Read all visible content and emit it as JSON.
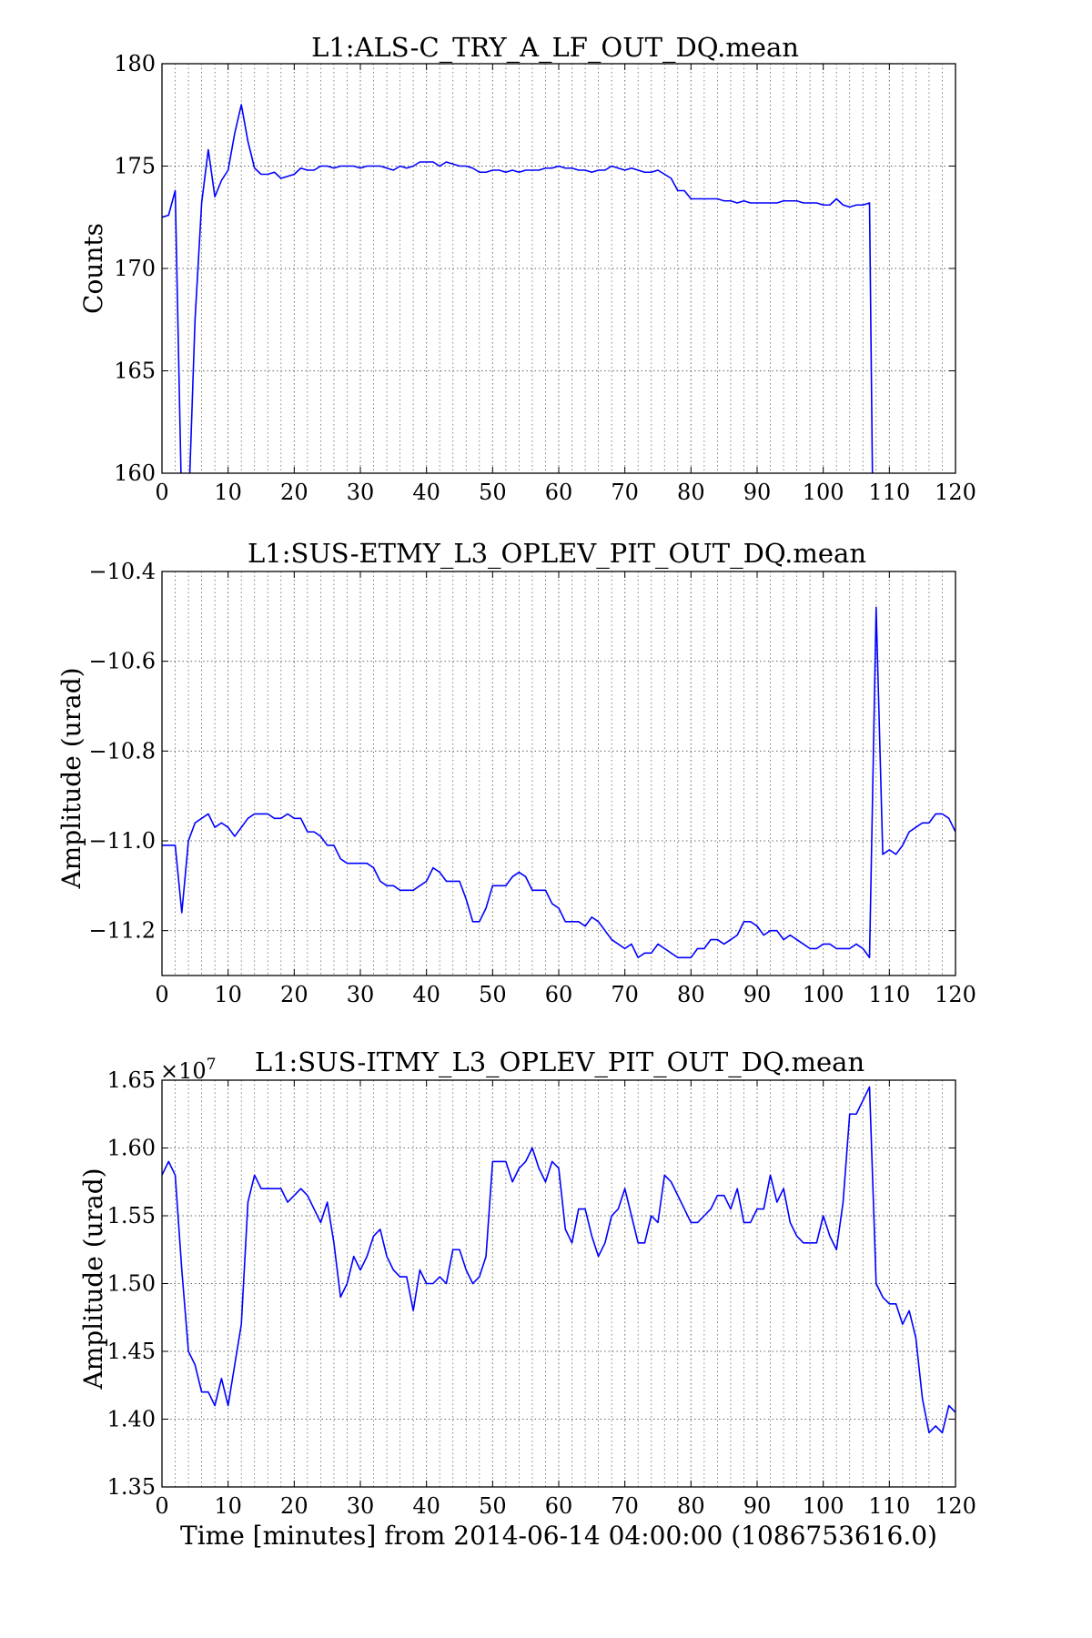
{
  "figure": {
    "xlabel": "Time [minutes] from 2014-06-14 04:00:00 (1086753616.0)",
    "line_color": "#0000ff",
    "grid_color": "#666666"
  },
  "chart_data": [
    {
      "type": "line",
      "title": "L1:ALS-C_TRY_A_LF_OUT_DQ.mean",
      "ylabel": "Counts",
      "xlabel": "",
      "xlim": [
        0,
        120
      ],
      "ylim": [
        160,
        180
      ],
      "xticks": [
        0,
        10,
        20,
        30,
        40,
        50,
        60,
        70,
        80,
        90,
        100,
        110,
        120
      ],
      "yticks": [
        160,
        165,
        170,
        175,
        180
      ],
      "ytick_labels": [
        "160",
        "165",
        "170",
        "175",
        "180"
      ],
      "offset_label": "",
      "grid": true,
      "series": [
        {
          "x": [
            0,
            1,
            2,
            3,
            4,
            5,
            6,
            7,
            8,
            9,
            10,
            11,
            12,
            13,
            14,
            15,
            16,
            17,
            18,
            19,
            20,
            21,
            22,
            23,
            24,
            25,
            26,
            27,
            28,
            29,
            30,
            31,
            32,
            33,
            34,
            35,
            36,
            37,
            38,
            39,
            40,
            41,
            42,
            43,
            44,
            45,
            46,
            47,
            48,
            49,
            50,
            51,
            52,
            53,
            54,
            55,
            56,
            57,
            58,
            59,
            60,
            61,
            62,
            63,
            64,
            65,
            66,
            67,
            68,
            69,
            70,
            71,
            72,
            73,
            74,
            75,
            76,
            77,
            78,
            79,
            80,
            81,
            82,
            83,
            84,
            85,
            86,
            87,
            88,
            89,
            90,
            91,
            92,
            93,
            94,
            95,
            96,
            97,
            98,
            99,
            100,
            101,
            102,
            103,
            104,
            105,
            106,
            107,
            107.5
          ],
          "y": [
            172.5,
            172.6,
            173.8,
            158,
            158,
            167.5,
            173.2,
            175.8,
            173.5,
            174.3,
            174.8,
            176.6,
            178.0,
            176.2,
            174.9,
            174.6,
            174.6,
            174.7,
            174.4,
            174.5,
            174.6,
            174.9,
            174.8,
            174.8,
            175.0,
            175.0,
            174.9,
            175.0,
            175.0,
            175.0,
            174.9,
            175.0,
            175.0,
            175.0,
            174.9,
            174.8,
            175.0,
            174.9,
            175.0,
            175.2,
            175.2,
            175.2,
            175.0,
            175.2,
            175.1,
            175.0,
            175.0,
            174.9,
            174.7,
            174.7,
            174.8,
            174.8,
            174.7,
            174.8,
            174.7,
            174.8,
            174.8,
            174.8,
            174.9,
            174.9,
            175.0,
            174.9,
            174.9,
            174.8,
            174.8,
            174.7,
            174.8,
            174.8,
            175.0,
            174.9,
            174.8,
            174.9,
            174.8,
            174.7,
            174.7,
            174.8,
            174.6,
            174.4,
            173.8,
            173.8,
            173.4,
            173.4,
            173.4,
            173.4,
            173.4,
            173.3,
            173.3,
            173.2,
            173.3,
            173.2,
            173.2,
            173.2,
            173.2,
            173.2,
            173.3,
            173.3,
            173.3,
            173.2,
            173.2,
            173.2,
            173.1,
            173.1,
            173.4,
            173.1,
            173.0,
            173.1,
            173.1,
            173.2,
            158
          ]
        }
      ]
    },
    {
      "type": "line",
      "title": "L1:SUS-ETMY_L3_OPLEV_PIT_OUT_DQ.mean",
      "ylabel": "Amplitude (urad)",
      "xlabel": "",
      "xlim": [
        0,
        120
      ],
      "ylim": [
        -11.3,
        -10.4
      ],
      "xticks": [
        0,
        10,
        20,
        30,
        40,
        50,
        60,
        70,
        80,
        90,
        100,
        110,
        120
      ],
      "yticks": [
        -11.2,
        -11.0,
        -10.8,
        -10.6,
        -10.4
      ],
      "ytick_labels": [
        "−11.2",
        "−11.0",
        "−10.8",
        "−10.6",
        "−10.4"
      ],
      "offset_label": "",
      "grid": true,
      "series": [
        {
          "x": [
            0,
            1,
            2,
            3,
            4,
            5,
            6,
            7,
            8,
            9,
            10,
            11,
            12,
            13,
            14,
            15,
            16,
            17,
            18,
            19,
            20,
            21,
            22,
            23,
            24,
            25,
            26,
            27,
            28,
            29,
            30,
            31,
            32,
            33,
            34,
            35,
            36,
            37,
            38,
            39,
            40,
            41,
            42,
            43,
            44,
            45,
            46,
            47,
            48,
            49,
            50,
            51,
            52,
            53,
            54,
            55,
            56,
            57,
            58,
            59,
            60,
            61,
            62,
            63,
            64,
            65,
            66,
            67,
            68,
            69,
            70,
            71,
            72,
            73,
            74,
            75,
            76,
            77,
            78,
            79,
            80,
            81,
            82,
            83,
            84,
            85,
            86,
            87,
            88,
            89,
            90,
            91,
            92,
            93,
            94,
            95,
            96,
            97,
            98,
            99,
            100,
            101,
            102,
            103,
            104,
            105,
            106,
            107,
            108,
            109,
            110,
            111,
            112,
            113,
            114,
            115,
            116,
            117,
            118,
            119,
            120
          ],
          "y": [
            -11.01,
            -11.01,
            -11.01,
            -11.16,
            -11.0,
            -10.96,
            -10.95,
            -10.94,
            -10.97,
            -10.96,
            -10.97,
            -10.99,
            -10.97,
            -10.95,
            -10.94,
            -10.94,
            -10.94,
            -10.95,
            -10.95,
            -10.94,
            -10.95,
            -10.95,
            -10.98,
            -10.98,
            -10.99,
            -11.01,
            -11.01,
            -11.04,
            -11.05,
            -11.05,
            -11.05,
            -11.05,
            -11.06,
            -11.09,
            -11.1,
            -11.1,
            -11.11,
            -11.11,
            -11.11,
            -11.1,
            -11.09,
            -11.06,
            -11.07,
            -11.09,
            -11.09,
            -11.09,
            -11.13,
            -11.18,
            -11.18,
            -11.15,
            -11.1,
            -11.1,
            -11.1,
            -11.08,
            -11.07,
            -11.08,
            -11.11,
            -11.11,
            -11.11,
            -11.14,
            -11.15,
            -11.18,
            -11.18,
            -11.18,
            -11.19,
            -11.17,
            -11.18,
            -11.2,
            -11.22,
            -11.23,
            -11.24,
            -11.23,
            -11.26,
            -11.25,
            -11.25,
            -11.23,
            -11.24,
            -11.25,
            -11.26,
            -11.26,
            -11.26,
            -11.24,
            -11.24,
            -11.22,
            -11.22,
            -11.23,
            -11.22,
            -11.21,
            -11.18,
            -11.18,
            -11.19,
            -11.21,
            -11.2,
            -11.2,
            -11.22,
            -11.21,
            -11.22,
            -11.23,
            -11.24,
            -11.24,
            -11.23,
            -11.23,
            -11.24,
            -11.24,
            -11.24,
            -11.23,
            -11.24,
            -11.26,
            -10.48,
            -11.03,
            -11.02,
            -11.03,
            -11.01,
            -10.98,
            -10.97,
            -10.96,
            -10.96,
            -10.94,
            -10.94,
            -10.95,
            -10.98
          ]
        }
      ]
    },
    {
      "type": "line",
      "title": "L1:SUS-ITMY_L3_OPLEV_PIT_OUT_DQ.mean",
      "ylabel": "Amplitude (urad)",
      "xlabel": "Time [minutes] from 2014-06-14 04:00:00 (1086753616.0)",
      "xlim": [
        0,
        120
      ],
      "ylim": [
        1.35,
        1.65
      ],
      "xticks": [
        0,
        10,
        20,
        30,
        40,
        50,
        60,
        70,
        80,
        90,
        100,
        110,
        120
      ],
      "yticks": [
        1.35,
        1.4,
        1.45,
        1.5,
        1.55,
        1.6,
        1.65
      ],
      "ytick_labels": [
        "1.35",
        "1.40",
        "1.45",
        "1.50",
        "1.55",
        "1.60",
        "1.65"
      ],
      "offset_label": "×10",
      "offset_exponent": "7",
      "grid": true,
      "series": [
        {
          "x": [
            0,
            1,
            2,
            3,
            4,
            5,
            6,
            7,
            8,
            9,
            10,
            11,
            12,
            13,
            14,
            15,
            16,
            17,
            18,
            19,
            20,
            21,
            22,
            23,
            24,
            25,
            26,
            27,
            28,
            29,
            30,
            31,
            32,
            33,
            34,
            35,
            36,
            37,
            38,
            39,
            40,
            41,
            42,
            43,
            44,
            45,
            46,
            47,
            48,
            49,
            50,
            51,
            52,
            53,
            54,
            55,
            56,
            57,
            58,
            59,
            60,
            61,
            62,
            63,
            64,
            65,
            66,
            67,
            68,
            69,
            70,
            71,
            72,
            73,
            74,
            75,
            76,
            77,
            78,
            79,
            80,
            81,
            82,
            83,
            84,
            85,
            86,
            87,
            88,
            89,
            90,
            91,
            92,
            93,
            94,
            95,
            96,
            97,
            98,
            99,
            100,
            101,
            102,
            103,
            104,
            105,
            106,
            107,
            108,
            109,
            110,
            111,
            112,
            113,
            114,
            115,
            116,
            117,
            118,
            119,
            120
          ],
          "y": [
            1.58,
            1.59,
            1.58,
            1.51,
            1.45,
            1.44,
            1.42,
            1.42,
            1.41,
            1.43,
            1.41,
            1.44,
            1.47,
            1.56,
            1.58,
            1.57,
            1.57,
            1.57,
            1.57,
            1.56,
            1.565,
            1.57,
            1.565,
            1.555,
            1.545,
            1.56,
            1.53,
            1.49,
            1.5,
            1.52,
            1.51,
            1.52,
            1.535,
            1.54,
            1.52,
            1.51,
            1.505,
            1.505,
            1.48,
            1.51,
            1.5,
            1.5,
            1.505,
            1.5,
            1.525,
            1.525,
            1.51,
            1.5,
            1.505,
            1.52,
            1.59,
            1.59,
            1.59,
            1.575,
            1.585,
            1.59,
            1.6,
            1.585,
            1.575,
            1.59,
            1.585,
            1.54,
            1.53,
            1.555,
            1.555,
            1.535,
            1.52,
            1.53,
            1.55,
            1.555,
            1.57,
            1.55,
            1.53,
            1.53,
            1.55,
            1.545,
            1.58,
            1.575,
            1.565,
            1.555,
            1.545,
            1.545,
            1.55,
            1.555,
            1.565,
            1.565,
            1.555,
            1.57,
            1.545,
            1.545,
            1.555,
            1.555,
            1.58,
            1.56,
            1.57,
            1.545,
            1.535,
            1.53,
            1.53,
            1.53,
            1.55,
            1.535,
            1.525,
            1.56,
            1.625,
            1.625,
            1.635,
            1.645,
            1.5,
            1.49,
            1.485,
            1.485,
            1.47,
            1.48,
            1.46,
            1.415,
            1.39,
            1.395,
            1.39,
            1.41,
            1.405
          ]
        }
      ]
    }
  ]
}
